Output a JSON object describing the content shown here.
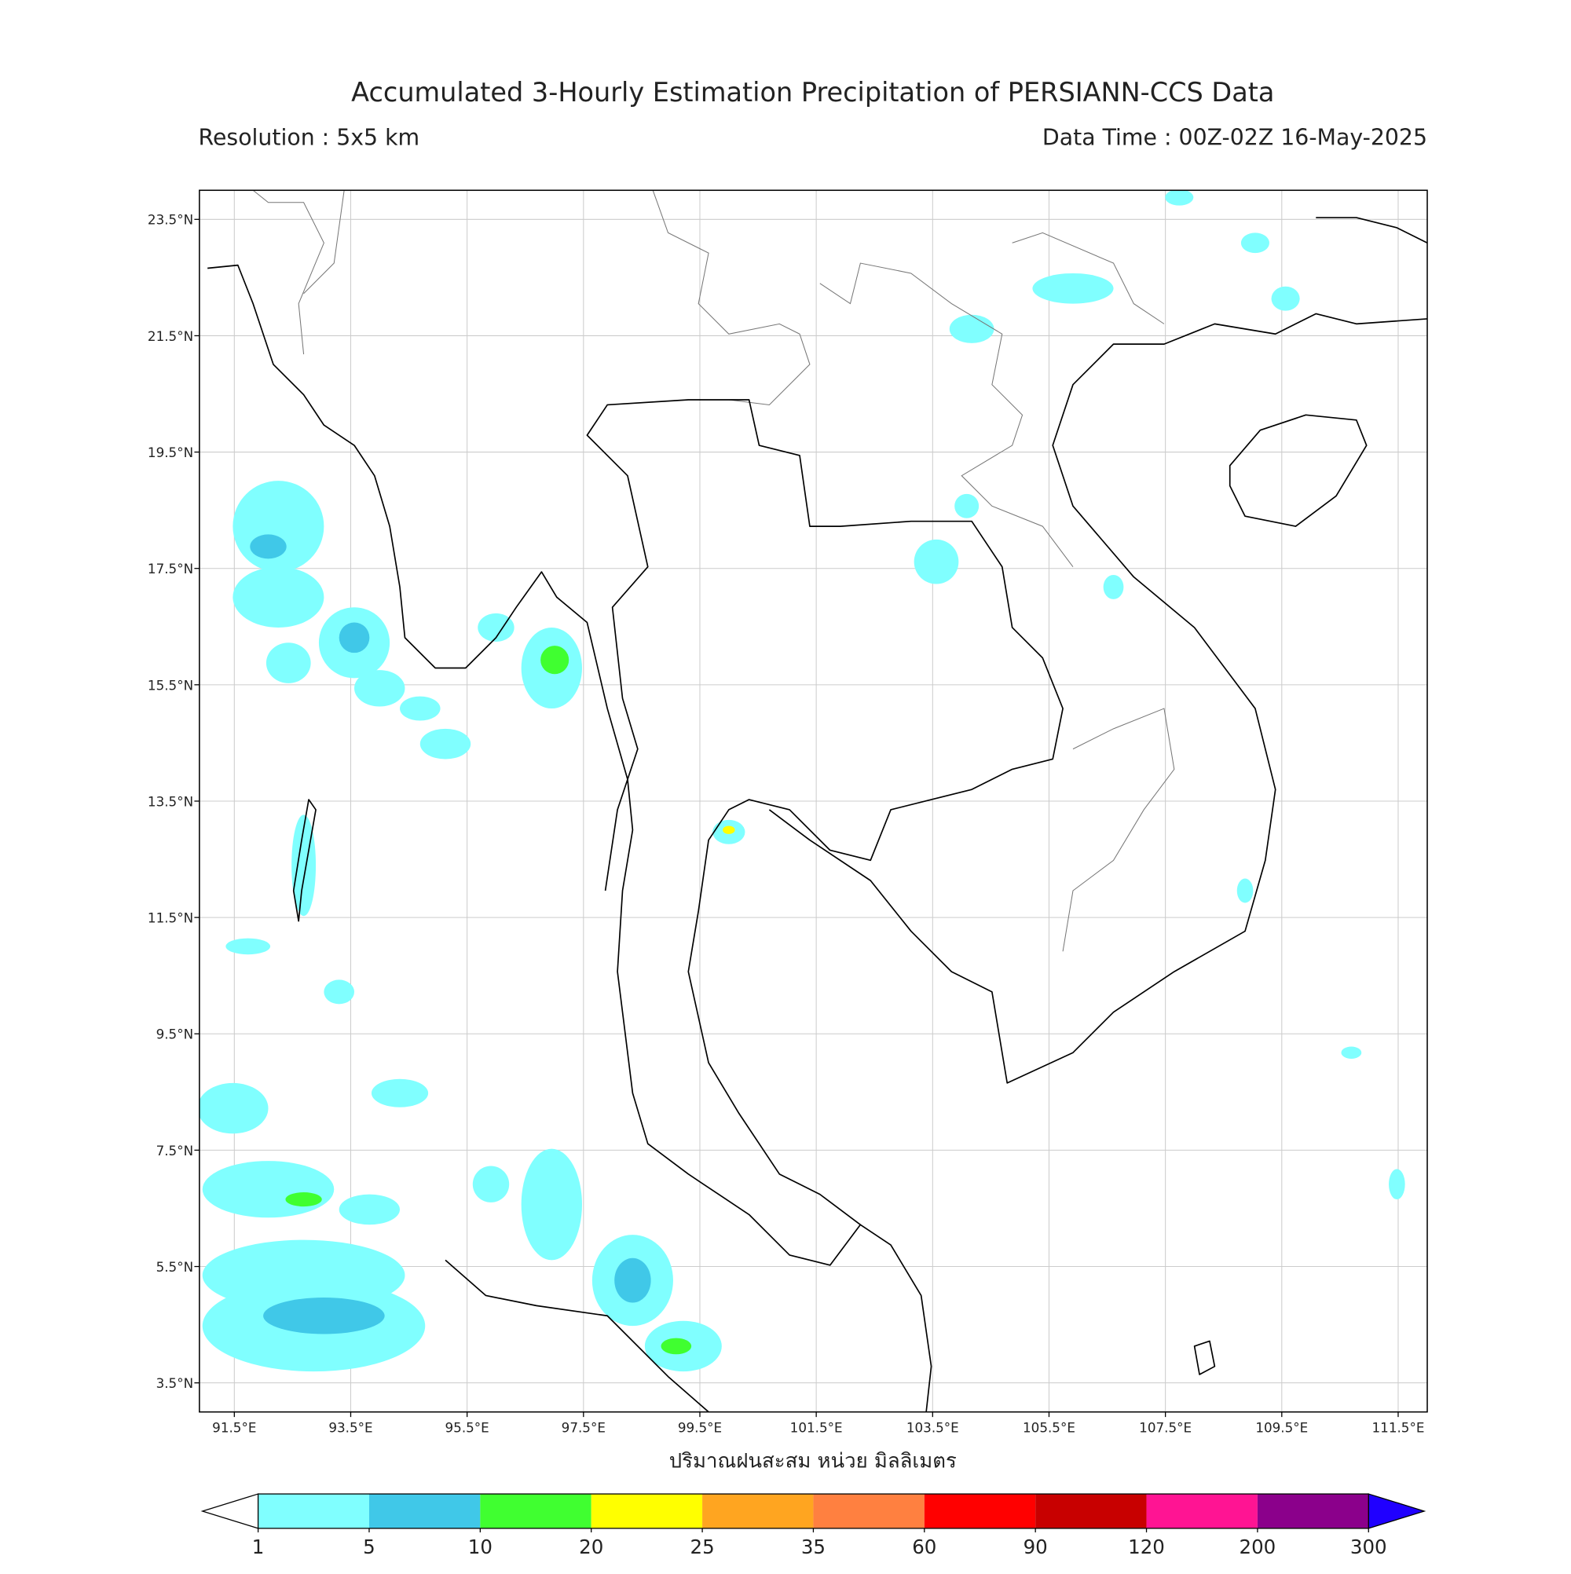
{
  "title": "Accumulated 3-Hourly Estimation Precipitation of PERSIANN-CCS Data",
  "resolution": "Resolution : 5x5 km",
  "data_time": "Data Time : 00Z-02Z 16-May-2025",
  "map": {
    "lonlim": [
      90.9,
      112.0
    ],
    "latlim": [
      3.0,
      24.0
    ],
    "grid": true,
    "lon_ticks": [
      {
        "value": 91.5,
        "label": "91.5°E"
      },
      {
        "value": 93.5,
        "label": "93.5°E"
      },
      {
        "value": 95.5,
        "label": "95.5°E"
      },
      {
        "value": 97.5,
        "label": "97.5°E"
      },
      {
        "value": 99.5,
        "label": "99.5°E"
      },
      {
        "value": 101.5,
        "label": "101.5°E"
      },
      {
        "value": 103.5,
        "label": "103.5°E"
      },
      {
        "value": 105.5,
        "label": "105.5°E"
      },
      {
        "value": 107.5,
        "label": "107.5°E"
      },
      {
        "value": 109.5,
        "label": "109.5°E"
      },
      {
        "value": 111.5,
        "label": "111.5°E"
      }
    ],
    "lat_ticks": [
      {
        "value": 23.5,
        "label": "23.5°N"
      },
      {
        "value": 21.5,
        "label": "21.5°N"
      },
      {
        "value": 19.5,
        "label": "19.5°N"
      },
      {
        "value": 17.5,
        "label": "17.5°N"
      },
      {
        "value": 15.5,
        "label": "15.5°N"
      },
      {
        "value": 13.5,
        "label": "13.5°N"
      },
      {
        "value": 11.5,
        "label": "11.5°N"
      },
      {
        "value": 9.5,
        "label": "9.5°N"
      },
      {
        "value": 7.5,
        "label": "7.5°N"
      },
      {
        "value": 5.5,
        "label": "5.5°N"
      },
      {
        "value": 3.5,
        "label": "3.5°N"
      }
    ]
  },
  "colorbar": {
    "label": "ปริมาณฝนสะสม หน่วย มิลลิเมตร",
    "levels": [
      1,
      5,
      10,
      20,
      25,
      35,
      60,
      90,
      120,
      200,
      300
    ],
    "colors": [
      "#80ffff",
      "#40c8e8",
      "#40ff30",
      "#ffff00",
      "#ffa520",
      "#ff8040",
      "#ff0000",
      "#c80000",
      "#ff1493",
      "#8b008b"
    ],
    "under_color": "#ffffff",
    "over_color": "#2000ff"
  }
}
